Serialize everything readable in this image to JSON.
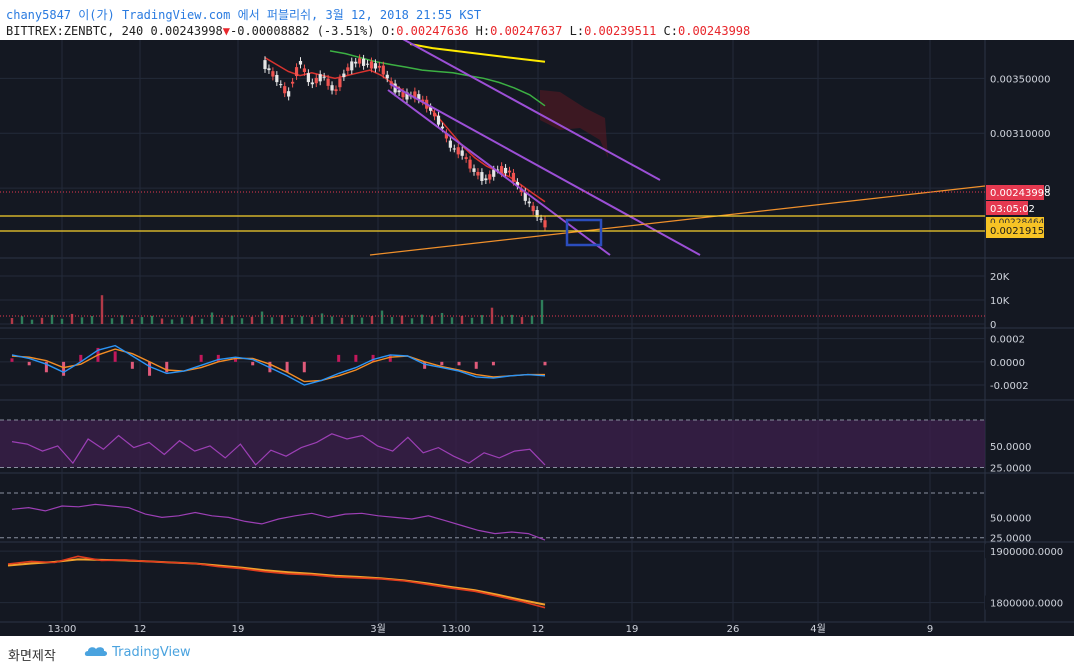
{
  "header": {
    "publish_line": "chany5847 이(가) TradingView.com 에서 퍼블리쉬, 3월 12, 2018 21:55 KST",
    "user": "chany5847",
    "symbol": "BITTREX:ZENBTC, 240",
    "last": "0.00243998",
    "change": "-0.00008882 (-3.51%)",
    "open_label": "O:",
    "open": "0.00247636",
    "high_label": "H:",
    "high": "0.00247637",
    "low_label": "L:",
    "low": "0.00239511",
    "close_label": "C:",
    "close": "0.00243998"
  },
  "colors": {
    "background": "#141822",
    "grid": "#232a3a",
    "axis_text": "#cfd3dc",
    "up": "#26a69a",
    "down": "#ef5350",
    "channel": "#9c4fd6",
    "trendline": "#f0902b",
    "hline": "#f7d02c",
    "ma_yellow": "#ffea00",
    "ma_green": "#3cb043",
    "ma_red": "#d8332f",
    "price_tag": "#e53950",
    "level_tag": "#f7c325",
    "box": "#2b4dbd",
    "macd": "#2c94f5",
    "signal": "#f28c24",
    "rsi": "#9c3fb5",
    "rsi_band": "#3a1f4a",
    "obv": "#e03c1e",
    "obv_ma": "#f2a12c",
    "volume_up": "#2e7d5a",
    "volume_down": "#b23a48"
  },
  "chart_data": [
    {
      "type": "line",
      "title": "BITTREX:ZENBTC, 240 (candlestick)",
      "ylim": [
        0.00222,
        0.00375
      ],
      "y_ticks": [
        0.0035,
        0.0031,
        0.0027
      ],
      "y_tick_labels": [
        "0.00350000",
        "0.00310000",
        "0.00270000"
      ],
      "x_tick_labels": [
        "13:00",
        "12",
        "19",
        "3월",
        "13:00",
        "12",
        "19",
        "26",
        "4월",
        "9"
      ],
      "series": [
        {
          "name": "close",
          "values": [
            0.0036,
            0.0035,
            0.00338,
            0.00362,
            0.00346,
            0.00352,
            0.0034,
            0.00356,
            0.00363,
            0.0036,
            0.00358,
            0.00344,
            0.00337,
            0.00338,
            0.0033,
            0.00318,
            0.003,
            0.00295,
            0.00282,
            0.00276,
            0.00284,
            0.00282,
            0.00268,
            0.00255,
            0.00244
          ]
        },
        {
          "name": "ma_red",
          "values": [
            0.00365,
            0.0036,
            0.00355,
            0.00352,
            0.00354,
            0.00352,
            0.0035,
            0.00352,
            0.00354,
            0.00356,
            0.00352,
            0.00346,
            0.0034,
            0.00335,
            0.0033,
            0.0032,
            0.0031,
            0.003,
            0.00292,
            0.00286,
            0.00282,
            0.00278,
            0.00272,
            0.00266,
            0.0026
          ]
        },
        {
          "name": "ma_green",
          "values": [
            0.0037,
            0.00368,
            0.00365,
            0.00362,
            0.0036,
            0.00358,
            0.00356,
            0.00355,
            0.00354,
            0.00352,
            0.0035,
            0.00347,
            0.00343,
            0.00338,
            0.0033
          ]
        },
        {
          "name": "ma_yellow",
          "values": [
            0.00375,
            0.00372,
            0.0037,
            0.00368,
            0.00366,
            0.00364,
            0.00362
          ]
        }
      ],
      "annotations": {
        "last_price": "0.00243998",
        "countdown": "03:05:02",
        "level_top": "0.00228464",
        "level_bottom": "0.00219158",
        "level_top_value": 0.00228464,
        "level_bottom_value": 0.00219158
      }
    },
    {
      "type": "bar",
      "title": "Volume",
      "ylim": [
        0,
        25000
      ],
      "y_ticks": [
        20000,
        10000,
        0
      ],
      "y_tick_labels": [
        "20K",
        "10K",
        "0"
      ],
      "values": [
        2500,
        3200,
        1800,
        2600,
        3800,
        2200,
        4200,
        2800,
        3300,
        12000,
        2400,
        3600,
        2100,
        2900,
        3400,
        2300,
        1900,
        2700,
        3100,
        2200,
        4800,
        2600,
        3500,
        2400,
        3000,
        5200,
        2800,
        3700,
        2500,
        3200,
        2900,
        4400,
        3100,
        2600,
        3800,
        2700,
        3300,
        5600,
        2900,
        3500,
        2400,
        3900,
        3200,
        4600,
        2800,
        3400,
        2600,
        3700,
        6800,
        3100,
        3800,
        2900,
        3500,
        10000
      ]
    },
    {
      "type": "line",
      "title": "MACD",
      "ylim": [
        -0.00026,
        0.00024
      ],
      "y_ticks": [
        0.0002,
        0,
        -0.0002
      ],
      "y_tick_labels": [
        "0.0002",
        "0.0000",
        "-0.0002"
      ],
      "series": [
        {
          "name": "macd",
          "values": [
            6e-05,
            3e-05,
            -2e-05,
            -9e-05,
            0.0,
            0.0001,
            0.00014,
            5e-05,
            -4e-05,
            -0.0001,
            -8e-05,
            -3e-05,
            2e-05,
            4e-05,
            2e-05,
            -5e-05,
            -0.00012,
            -0.0002,
            -0.00016,
            -0.0001,
            -5e-05,
            2e-05,
            6e-05,
            5e-05,
            -2e-05,
            -5e-05,
            -8e-05,
            -0.00013,
            -0.00014,
            -0.00012,
            -0.00011,
            -0.00012
          ]
        },
        {
          "name": "signal",
          "values": [
            5e-05,
            4e-05,
            1e-05,
            -5e-05,
            -2e-05,
            6e-05,
            0.00011,
            7e-05,
            0.0,
            -7e-05,
            -8e-05,
            -5e-05,
            0.0,
            3e-05,
            3e-05,
            -2e-05,
            -9e-05,
            -0.00017,
            -0.00016,
            -0.00012,
            -7e-05,
            0.0,
            4e-05,
            5e-05,
            0.0,
            -4e-05,
            -7e-05,
            -0.00011,
            -0.00013,
            -0.00012,
            -0.00011,
            -0.00011
          ]
        }
      ]
    },
    {
      "type": "line",
      "title": "RSI",
      "ylim": [
        0,
        100
      ],
      "y_ticks": [
        50,
        25
      ],
      "y_tick_labels": [
        "50.0000",
        "25.0000"
      ],
      "band": [
        25,
        80
      ],
      "series": [
        {
          "name": "rsi",
          "values": [
            55,
            52,
            44,
            50,
            30,
            58,
            46,
            62,
            48,
            54,
            40,
            56,
            44,
            50,
            36,
            52,
            28,
            45,
            38,
            48,
            54,
            64,
            58,
            62,
            50,
            44,
            60,
            42,
            48,
            38,
            30,
            42,
            36,
            44,
            46,
            28
          ]
        }
      ]
    },
    {
      "type": "line",
      "title": "Oscillator",
      "ylim": [
        0,
        100
      ],
      "y_ticks": [
        50,
        25
      ],
      "y_tick_labels": [
        "50.0000",
        "25.0000"
      ],
      "series": [
        {
          "name": "osc",
          "values": [
            60,
            62,
            58,
            64,
            63,
            66,
            64,
            62,
            54,
            50,
            52,
            56,
            52,
            50,
            45,
            42,
            48,
            52,
            55,
            50,
            54,
            55,
            52,
            50,
            48,
            52,
            46,
            40,
            34,
            30,
            32,
            30,
            22
          ]
        }
      ]
    },
    {
      "type": "line",
      "title": "OBV",
      "ylim": [
        1770000,
        1910000
      ],
      "y_ticks": [
        1900000,
        1800000
      ],
      "y_tick_labels": [
        "1900000.0000",
        "1800000.0000"
      ],
      "series": [
        {
          "name": "obv",
          "values": [
            1875000,
            1880000,
            1878000,
            1890000,
            1882000,
            1883000,
            1880000,
            1878000,
            1876000,
            1870000,
            1866000,
            1860000,
            1856000,
            1854000,
            1850000,
            1848000,
            1846000,
            1842000,
            1835000,
            1828000,
            1822000,
            1812000,
            1802000,
            1790000
          ]
        },
        {
          "name": "obv_ma",
          "values": [
            1872000,
            1876000,
            1879000,
            1884000,
            1883000,
            1882000,
            1880000,
            1878000,
            1876000,
            1872000,
            1868000,
            1863000,
            1859000,
            1856000,
            1852000,
            1850000,
            1847000,
            1843000,
            1837000,
            1830000,
            1824000,
            1815000,
            1805000,
            1796000
          ]
        }
      ]
    }
  ],
  "footer": {
    "label": "화면제작",
    "logo": "TradingView"
  }
}
